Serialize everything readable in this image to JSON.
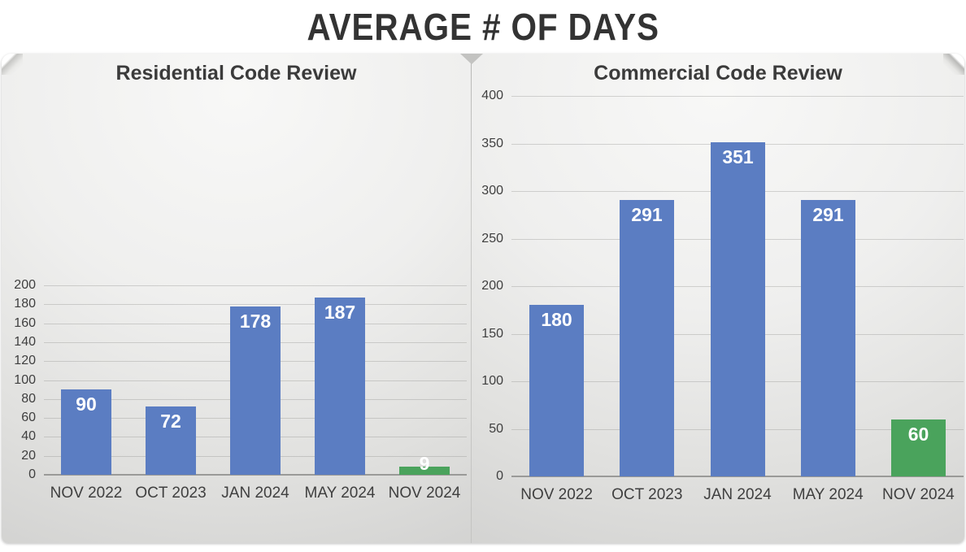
{
  "title": "AVERAGE # OF DAYS",
  "colors": {
    "bar_blue": "#5b7dc2",
    "bar_green": "#4aa35c",
    "data_label": "#ffffff",
    "axis_text": "#3f3f3f",
    "title_text": "#333333"
  },
  "chart_data": [
    {
      "type": "bar",
      "title": "Residential Code Review",
      "categories": [
        "NOV 2022",
        "OCT 2023",
        "JAN 2024",
        "MAY 2024",
        "NOV 2024"
      ],
      "values": [
        90,
        72,
        178,
        187,
        9
      ],
      "bar_colors": [
        "blue",
        "blue",
        "blue",
        "blue",
        "green"
      ],
      "data_labels": [
        "90",
        "72",
        "178",
        "187",
        "9"
      ],
      "ylim": [
        0,
        200
      ],
      "ytick_step": 20,
      "yticks": [
        0,
        20,
        40,
        60,
        80,
        100,
        120,
        140,
        160,
        180,
        200
      ],
      "grid": true,
      "legend": "none"
    },
    {
      "type": "bar",
      "title": "Commercial Code Review",
      "categories": [
        "NOV 2022",
        "OCT 2023",
        "JAN 2024",
        "MAY 2024",
        "NOV 2024"
      ],
      "values": [
        180,
        291,
        351,
        291,
        60
      ],
      "bar_colors": [
        "blue",
        "blue",
        "blue",
        "blue",
        "green"
      ],
      "data_labels": [
        "180",
        "291",
        "351",
        "291",
        "60"
      ],
      "ylim": [
        0,
        400
      ],
      "ytick_step": 50,
      "yticks": [
        0,
        50,
        100,
        150,
        200,
        250,
        300,
        350,
        400
      ],
      "grid": true,
      "legend": "none"
    }
  ]
}
